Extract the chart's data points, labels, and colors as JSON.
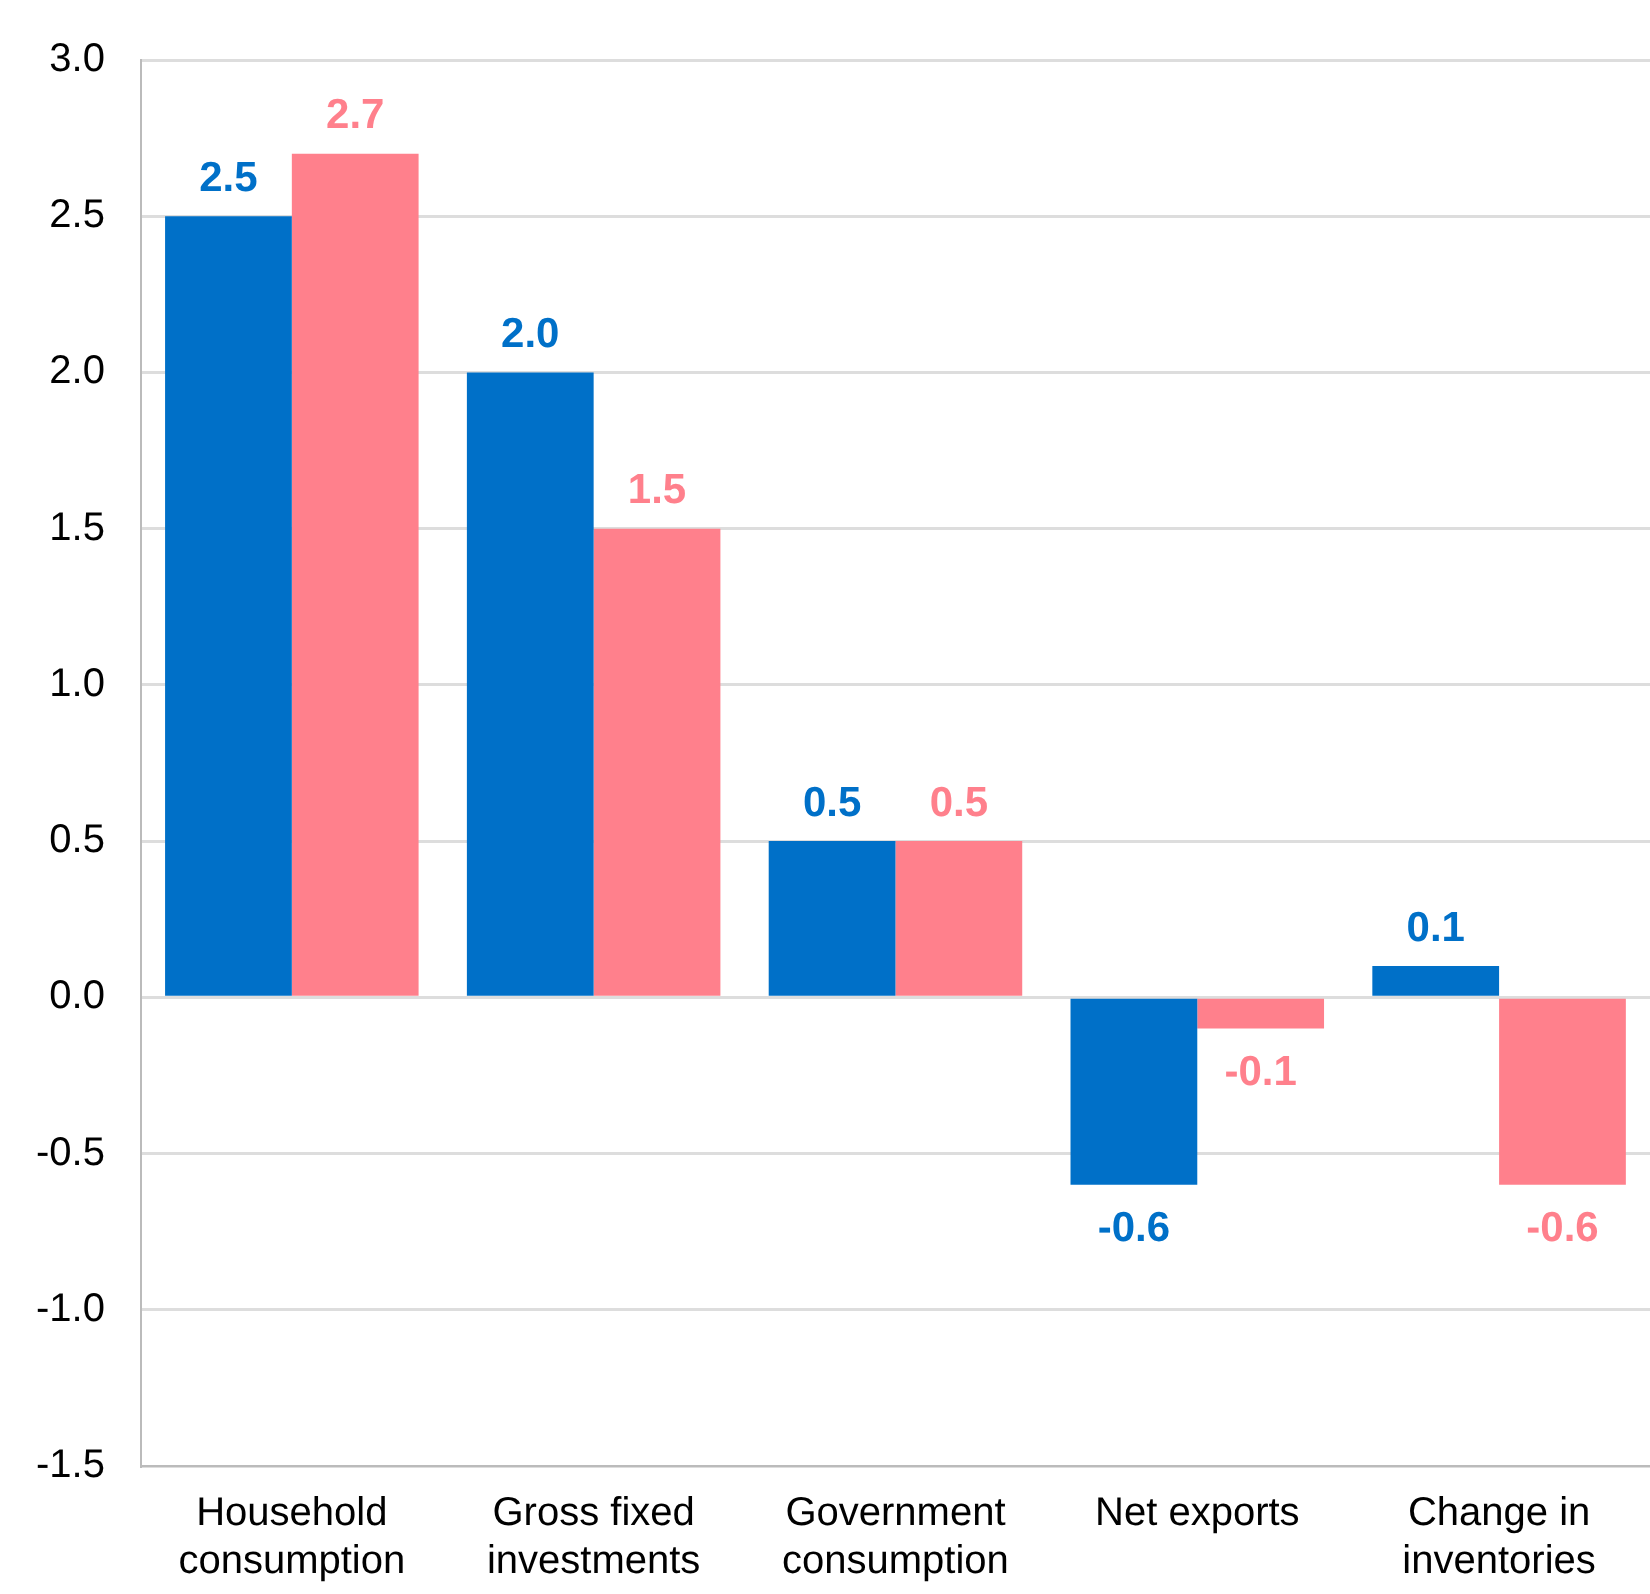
{
  "chart_data": {
    "type": "bar",
    "categories": [
      "Household consumption",
      "Gross fixed investments",
      "Government consumption",
      "Net exports",
      "Change in inventories"
    ],
    "series": [
      {
        "color": "#0070c8",
        "values": [
          2.5,
          2.0,
          0.5,
          -0.6,
          0.1
        ],
        "value_labels": [
          "2.5",
          "2.0",
          "0.5",
          "-0.6",
          "0.1"
        ]
      },
      {
        "color": "#ff808c",
        "values": [
          2.7,
          1.5,
          0.5,
          -0.1,
          -0.6
        ],
        "value_labels": [
          "2.7",
          "1.5",
          "0.5",
          "-0.1",
          "-0.6"
        ]
      }
    ],
    "ylim": [
      -1.5,
      3.0
    ],
    "yticks": [
      {
        "value": -1.5,
        "label": "-1.5"
      },
      {
        "value": -1.0,
        "label": "-1.0"
      },
      {
        "value": -0.5,
        "label": "-0.5"
      },
      {
        "value": 0,
        "label": "0.0"
      },
      {
        "value": 0.5,
        "label": "0.5"
      },
      {
        "value": 1.0,
        "label": "1.0"
      },
      {
        "value": 1.5,
        "label": "1.5"
      },
      {
        "value": 2.0,
        "label": "2.0"
      },
      {
        "value": 2.5,
        "label": "2.5"
      },
      {
        "value": 3.0,
        "label": "3.0"
      }
    ],
    "grid": "y",
    "legend": false
  }
}
